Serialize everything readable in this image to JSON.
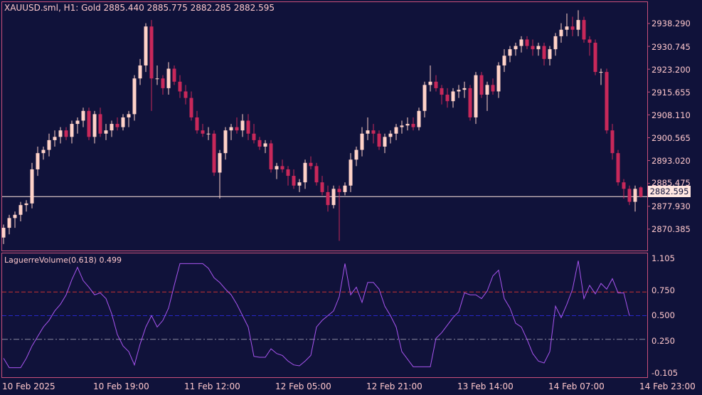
{
  "chart_header": {
    "symbol_title": "XAUUSD.sml, H1:  Gold  2885.440 2885.775 2882.285 2882.595"
  },
  "indicator_header": {
    "title": "LaguerreVolume(0.618) 0.499"
  },
  "colors": {
    "background": "#10123a",
    "border": "#c8507a",
    "bull_candle": "#ffd2c8",
    "bear_candle": "#c8285a",
    "indicator_line": "#a855f0",
    "upper_level": "#c83232",
    "mid_level": "#2828c8",
    "lower_level": "#8a8aa0",
    "price_line": "#ffe6e0"
  },
  "current_price_label": "2882.595",
  "chart_data": [
    {
      "type": "candlestick",
      "ylim": [
        2866.0,
        2942.5
      ],
      "y_ticks": [
        "2938.290",
        "2930.745",
        "2923.200",
        "2915.655",
        "2908.110",
        "2900.565",
        "2893.020",
        "2885.475",
        "2877.930",
        "2870.385"
      ],
      "current_price": 2882.595,
      "candles": [
        [
          2870.0,
          2874.0,
          2868.0,
          2873.0
        ],
        [
          2873.0,
          2877.0,
          2871.0,
          2876.0
        ],
        [
          2876.0,
          2878.0,
          2873.0,
          2877.0
        ],
        [
          2877.0,
          2881.0,
          2875.0,
          2880.0
        ],
        [
          2880.0,
          2881.5,
          2878.0,
          2880.5
        ],
        [
          2880.5,
          2893.0,
          2879.0,
          2891.0
        ],
        [
          2891.0,
          2898.0,
          2889.0,
          2896.0
        ],
        [
          2896.0,
          2898.0,
          2894.0,
          2897.0
        ],
        [
          2897.0,
          2902.0,
          2895.0,
          2900.0
        ],
        [
          2900.0,
          2903.0,
          2898.0,
          2901.0
        ],
        [
          2901.0,
          2904.0,
          2899.0,
          2903.0
        ],
        [
          2903.0,
          2904.0,
          2900.0,
          2901.0
        ],
        [
          2901.0,
          2906.0,
          2899.0,
          2905.0
        ],
        [
          2905.0,
          2907.0,
          2902.0,
          2906.0
        ],
        [
          2906.0,
          2910.0,
          2904.0,
          2909.0
        ],
        [
          2909.0,
          2910.0,
          2900.0,
          2901.0
        ],
        [
          2901.0,
          2909.0,
          2899.0,
          2908.0
        ],
        [
          2908.0,
          2910.0,
          2901.0,
          2902.0
        ],
        [
          2902.0,
          2905.0,
          2900.0,
          2903.0
        ],
        [
          2903.0,
          2906.0,
          2901.0,
          2905.0
        ],
        [
          2905.0,
          2907.0,
          2903.0,
          2904.0
        ],
        [
          2904.0,
          2908.0,
          2903.0,
          2907.0
        ],
        [
          2907.0,
          2909.0,
          2904.0,
          2908.0
        ],
        [
          2908.0,
          2920.0,
          2906.0,
          2919.0
        ],
        [
          2919.0,
          2925.0,
          2917.0,
          2923.0
        ],
        [
          2923.0,
          2936.0,
          2921.0,
          2935.0
        ],
        [
          2935.0,
          2937.0,
          2909.0,
          2919.0
        ],
        [
          2919.0,
          2923.0,
          2917.0,
          2919.0
        ],
        [
          2919.0,
          2920.0,
          2914.0,
          2916.0
        ],
        [
          2916.0,
          2924.0,
          2914.0,
          2922.0
        ],
        [
          2922.0,
          2923.0,
          2917.0,
          2918.0
        ],
        [
          2918.0,
          2920.0,
          2913.0,
          2915.0
        ],
        [
          2915.0,
          2917.0,
          2911.0,
          2913.0
        ],
        [
          2913.0,
          2915.0,
          2906.0,
          2907.0
        ],
        [
          2907.0,
          2909.0,
          2902.0,
          2903.0
        ],
        [
          2903.0,
          2905.0,
          2901.0,
          2902.0
        ],
        [
          2902.0,
          2904.0,
          2900.0,
          2902.0
        ],
        [
          2902.0,
          2903.0,
          2889.0,
          2890.0
        ],
        [
          2890.0,
          2897.0,
          2882.0,
          2896.0
        ],
        [
          2896.0,
          2904.0,
          2894.0,
          2903.0
        ],
        [
          2903.0,
          2905.0,
          2900.0,
          2904.0
        ],
        [
          2904.0,
          2907.0,
          2902.0,
          2903.0
        ],
        [
          2903.0,
          2908.0,
          2901.0,
          2906.0
        ],
        [
          2906.0,
          2908.0,
          2900.0,
          2902.0
        ],
        [
          2902.0,
          2905.0,
          2899.0,
          2900.0
        ],
        [
          2900.0,
          2901.0,
          2897.0,
          2898.0
        ],
        [
          2898.0,
          2900.0,
          2896.0,
          2899.0
        ],
        [
          2899.0,
          2900.0,
          2890.0,
          2891.0
        ],
        [
          2891.0,
          2893.0,
          2888.0,
          2892.0
        ],
        [
          2892.0,
          2894.0,
          2890.0,
          2891.0
        ],
        [
          2891.0,
          2892.0,
          2886.0,
          2889.0
        ],
        [
          2889.0,
          2891.0,
          2885.0,
          2886.0
        ],
        [
          2886.0,
          2888.0,
          2884.0,
          2887.0
        ],
        [
          2887.0,
          2894.0,
          2885.0,
          2893.0
        ],
        [
          2893.0,
          2895.0,
          2891.0,
          2892.0
        ],
        [
          2892.0,
          2893.0,
          2886.0,
          2887.0
        ],
        [
          2887.0,
          2889.0,
          2883.0,
          2884.0
        ],
        [
          2884.0,
          2886.0,
          2878.0,
          2880.0
        ],
        [
          2880.0,
          2886.0,
          2879.0,
          2885.0
        ],
        [
          2885.0,
          2886.0,
          2869.0,
          2884.0
        ],
        [
          2884.0,
          2887.0,
          2883.0,
          2886.0
        ],
        [
          2886.0,
          2896.0,
          2884.0,
          2894.0
        ],
        [
          2894.0,
          2898.0,
          2892.0,
          2897.0
        ],
        [
          2897.0,
          2904.0,
          2895.0,
          2902.0
        ],
        [
          2902.0,
          2907.0,
          2900.0,
          2903.0
        ],
        [
          2903.0,
          2905.0,
          2899.0,
          2902.0
        ],
        [
          2902.0,
          2903.0,
          2897.0,
          2898.0
        ],
        [
          2898.0,
          2902.0,
          2896.0,
          2901.0
        ],
        [
          2901.0,
          2903.0,
          2899.0,
          2902.0
        ],
        [
          2902.0,
          2905.0,
          2900.0,
          2904.0
        ],
        [
          2904.0,
          2906.0,
          2902.0,
          2904.5
        ],
        [
          2904.5,
          2907.0,
          2903.0,
          2905.0
        ],
        [
          2905.0,
          2907.0,
          2903.0,
          2904.0
        ],
        [
          2904.0,
          2910.0,
          2903.0,
          2909.0
        ],
        [
          2909.0,
          2918.0,
          2907.0,
          2917.0
        ],
        [
          2917.0,
          2923.0,
          2915.0,
          2918.0
        ],
        [
          2918.0,
          2920.0,
          2915.0,
          2916.0
        ],
        [
          2916.0,
          2917.0,
          2911.0,
          2914.0
        ],
        [
          2914.0,
          2916.0,
          2910.0,
          2912.0
        ],
        [
          2912.0,
          2916.0,
          2910.0,
          2915.0
        ],
        [
          2915.0,
          2917.0,
          2913.0,
          2915.5
        ],
        [
          2915.5,
          2918.0,
          2913.0,
          2916.0
        ],
        [
          2916.0,
          2917.0,
          2906.0,
          2907.0
        ],
        [
          2907.0,
          2921.0,
          2905.0,
          2920.0
        ],
        [
          2920.0,
          2921.0,
          2913.0,
          2914.0
        ],
        [
          2914.0,
          2918.0,
          2909.0,
          2917.0
        ],
        [
          2917.0,
          2919.0,
          2914.0,
          2915.0
        ],
        [
          2915.0,
          2924.0,
          2913.0,
          2923.0
        ],
        [
          2923.0,
          2928.0,
          2921.0,
          2926.0
        ],
        [
          2926.0,
          2929.0,
          2924.0,
          2928.0
        ],
        [
          2928.0,
          2930.0,
          2926.0,
          2929.0
        ],
        [
          2929.0,
          2932.0,
          2927.0,
          2931.0
        ],
        [
          2931.0,
          2932.0,
          2928.0,
          2929.0
        ],
        [
          2929.0,
          2931.0,
          2926.0,
          2928.0
        ],
        [
          2928.0,
          2930.0,
          2926.0,
          2929.0
        ],
        [
          2929.0,
          2930.0,
          2923.0,
          2925.0
        ],
        [
          2925.0,
          2929.0,
          2923.0,
          2928.0
        ],
        [
          2928.0,
          2933.0,
          2926.0,
          2932.0
        ],
        [
          2932.0,
          2936.0,
          2930.0,
          2934.0
        ],
        [
          2934.0,
          2939.0,
          2932.0,
          2935.0
        ],
        [
          2935.0,
          2938.0,
          2932.0,
          2934.0
        ],
        [
          2934.0,
          2940.0,
          2932.0,
          2937.0
        ],
        [
          2937.0,
          2938.0,
          2930.0,
          2931.0
        ],
        [
          2931.0,
          2932.0,
          2926.0,
          2930.0
        ],
        [
          2930.0,
          2931.0,
          2920.0,
          2921.0
        ],
        [
          2921.0,
          2922.0,
          2917.0,
          2921.0
        ],
        [
          2921.0,
          2922.0,
          2902.0,
          2903.0
        ],
        [
          2903.0,
          2905.0,
          2894.0,
          2896.0
        ],
        [
          2896.0,
          2897.0,
          2886.0,
          2887.0
        ],
        [
          2887.0,
          2888.0,
          2882.0,
          2885.0
        ],
        [
          2885.0,
          2886.0,
          2880.0,
          2881.0
        ],
        [
          2881.0,
          2886.0,
          2878.0,
          2885.0
        ],
        [
          2885.44,
          2885.775,
          2882.285,
          2882.595
        ]
      ]
    },
    {
      "type": "line",
      "name": "LaguerreVolume(0.618)",
      "ylim": [
        -0.105,
        1.105
      ],
      "y_ticks": [
        "1.105",
        "0.750",
        "0.500",
        "0.250",
        "-0.105"
      ],
      "levels": [
        0.75,
        0.5,
        0.25
      ],
      "values": [
        0.05,
        -0.05,
        -0.05,
        -0.05,
        0.05,
        0.18,
        0.28,
        0.38,
        0.45,
        0.55,
        0.62,
        0.72,
        0.88,
        1.01,
        0.87,
        0.8,
        0.72,
        0.74,
        0.68,
        0.52,
        0.3,
        0.18,
        0.12,
        -0.02,
        0.2,
        0.38,
        0.5,
        0.38,
        0.45,
        0.58,
        0.82,
        1.05,
        1.05,
        1.05,
        1.05,
        1.05,
        1.0,
        0.9,
        0.85,
        0.78,
        0.72,
        0.62,
        0.5,
        0.38,
        0.07,
        0.06,
        0.06,
        0.15,
        0.1,
        0.08,
        0.02,
        -0.02,
        -0.03,
        0.02,
        0.08,
        0.38,
        0.45,
        0.5,
        0.55,
        0.7,
        1.05,
        0.72,
        0.8,
        0.64,
        0.85,
        0.85,
        0.78,
        0.6,
        0.5,
        0.38,
        0.12,
        0.04,
        -0.04,
        -0.04,
        -0.04,
        -0.04,
        0.26,
        0.32,
        0.4,
        0.48,
        0.54,
        0.74,
        0.72,
        0.72,
        0.68,
        0.76,
        0.92,
        0.98,
        0.68,
        0.58,
        0.42,
        0.38,
        0.25,
        0.1,
        0.02,
        0.0,
        0.12,
        0.6,
        0.48,
        0.62,
        0.78,
        1.08,
        0.68,
        0.82,
        0.73,
        0.84,
        0.78,
        0.89,
        0.74,
        0.74,
        0.499
      ],
      "current_value": 0.499
    }
  ],
  "x_axis_labels": [
    "10 Feb 2025",
    "10 Feb 19:00",
    "11 Feb 12:00",
    "12 Feb 05:00",
    "12 Feb 21:00",
    "13 Feb 14:00",
    "14 Feb 07:00",
    "14 Feb 23:00"
  ]
}
